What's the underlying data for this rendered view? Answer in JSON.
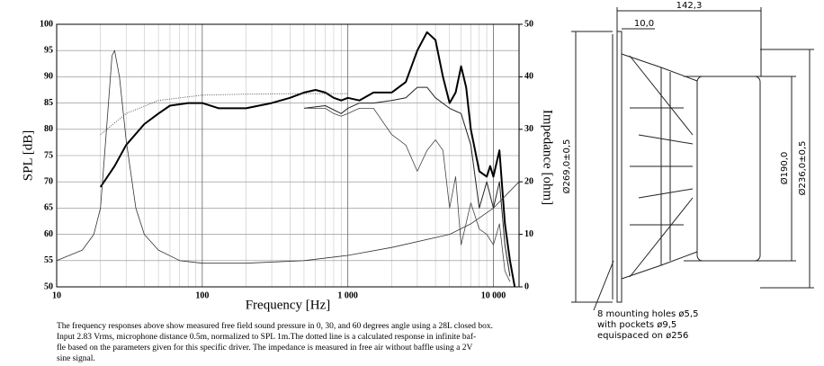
{
  "chart_data": {
    "type": "line",
    "xlabel": "Frequency [Hz]",
    "ylabel": "SPL [dB]",
    "y2label": "Impedance [ohm]",
    "xscale": "log",
    "xlim": [
      10,
      15000
    ],
    "xticks": [
      10,
      100,
      {
        "value": 1000,
        "label": "1 000"
      },
      {
        "value": 10000,
        "label": "10 000"
      }
    ],
    "ylim": [
      50,
      100
    ],
    "yticks": [
      50,
      55,
      60,
      65,
      70,
      75,
      80,
      85,
      90,
      95,
      100
    ],
    "y2lim": [
      0,
      50
    ],
    "y2ticks": [
      0,
      10,
      20,
      30,
      40,
      50
    ],
    "grid": true,
    "series": [
      {
        "color": "#000",
        "width": 2,
        "x": [
          20,
          25,
          30,
          40,
          50,
          60,
          80,
          100,
          130,
          200,
          300,
          400,
          500,
          600,
          700,
          800,
          900,
          1000,
          1200,
          1500,
          2000,
          2500,
          3000,
          3500,
          4000,
          4500,
          5000,
          5500,
          6000,
          6500,
          7000,
          8000,
          9000,
          9500,
          10000,
          11000,
          12000,
          13000,
          14000
        ],
        "values": [
          69,
          73,
          77,
          81,
          83,
          84.5,
          85,
          85,
          84,
          84,
          85,
          86,
          87,
          87.5,
          87,
          86,
          85.5,
          86,
          85.5,
          87,
          87,
          89,
          95,
          98.5,
          97,
          90,
          85,
          87,
          92,
          88,
          80,
          72,
          71,
          73,
          71,
          76,
          62,
          55,
          50
        ]
      },
      {
        "color": "#222",
        "width": 1,
        "x": [
          500,
          700,
          900,
          1000,
          1200,
          1500,
          2000,
          2500,
          3000,
          3500,
          4000,
          5000,
          6000,
          7000,
          8000,
          9000,
          10000,
          11000,
          12000,
          13000
        ],
        "values": [
          84,
          84.5,
          83,
          84,
          85,
          85,
          85.5,
          86,
          88,
          88,
          86,
          84,
          83,
          77,
          65,
          70,
          65,
          70,
          58,
          52
        ]
      },
      {
        "color": "#444",
        "width": 0.8,
        "x": [
          500,
          700,
          800,
          900,
          1000,
          1200,
          1500,
          2000,
          2500,
          3000,
          3500,
          4000,
          4500,
          5000,
          5500,
          6000,
          7000,
          8000,
          9000,
          10000,
          11000,
          12000,
          13000
        ],
        "values": [
          84,
          84,
          83,
          82.5,
          83,
          84,
          84,
          79,
          77,
          72,
          76,
          78,
          76,
          65,
          71,
          58,
          66,
          61,
          60,
          58,
          62,
          53,
          51
        ]
      },
      {
        "color": "#555",
        "width": 1,
        "dash": "1,1.5",
        "x": [
          20,
          30,
          50,
          100,
          200,
          500,
          1000
        ],
        "values": [
          79,
          83,
          85.5,
          86.5,
          86.7,
          86.8,
          86.8
        ]
      },
      {
        "color": "#333",
        "width": 0.8,
        "axis": "y2",
        "x": [
          10,
          15,
          18,
          20,
          22,
          24,
          25,
          27,
          30,
          35,
          40,
          50,
          70,
          100,
          200,
          500,
          1000,
          2000,
          5000,
          7000,
          10000,
          15000
        ],
        "values": [
          5,
          7,
          10,
          15,
          30,
          44,
          45,
          40,
          28,
          15,
          10,
          7,
          5,
          4.5,
          4.5,
          5,
          6,
          7.5,
          10,
          12,
          15,
          20
        ]
      }
    ]
  },
  "caption": [
    "The frequency responses above show measured free field sound pressure in 0, 30, and 60 degrees angle using a 28L closed box.",
    "Input 2.83 Vrms, microphone distance 0.5m, normalized to SPL 1m.The dotted line is a calculated response in infinite baf-",
    "fle based on the parameters given for this specific driver. The impedance is measured in free air without baffle using a 2V",
    "sine signal."
  ],
  "drawing": {
    "depth": "142,3",
    "flange": "10,0",
    "outer_diameter": "Ø269,0±0,5",
    "magnet_diameter": "Ø190,0",
    "cutout_diameter": "Ø236,0±0,5",
    "holes": [
      "8 mounting holes ø5,5",
      "with pockets ø9,5",
      "equispaced on ø256"
    ]
  }
}
